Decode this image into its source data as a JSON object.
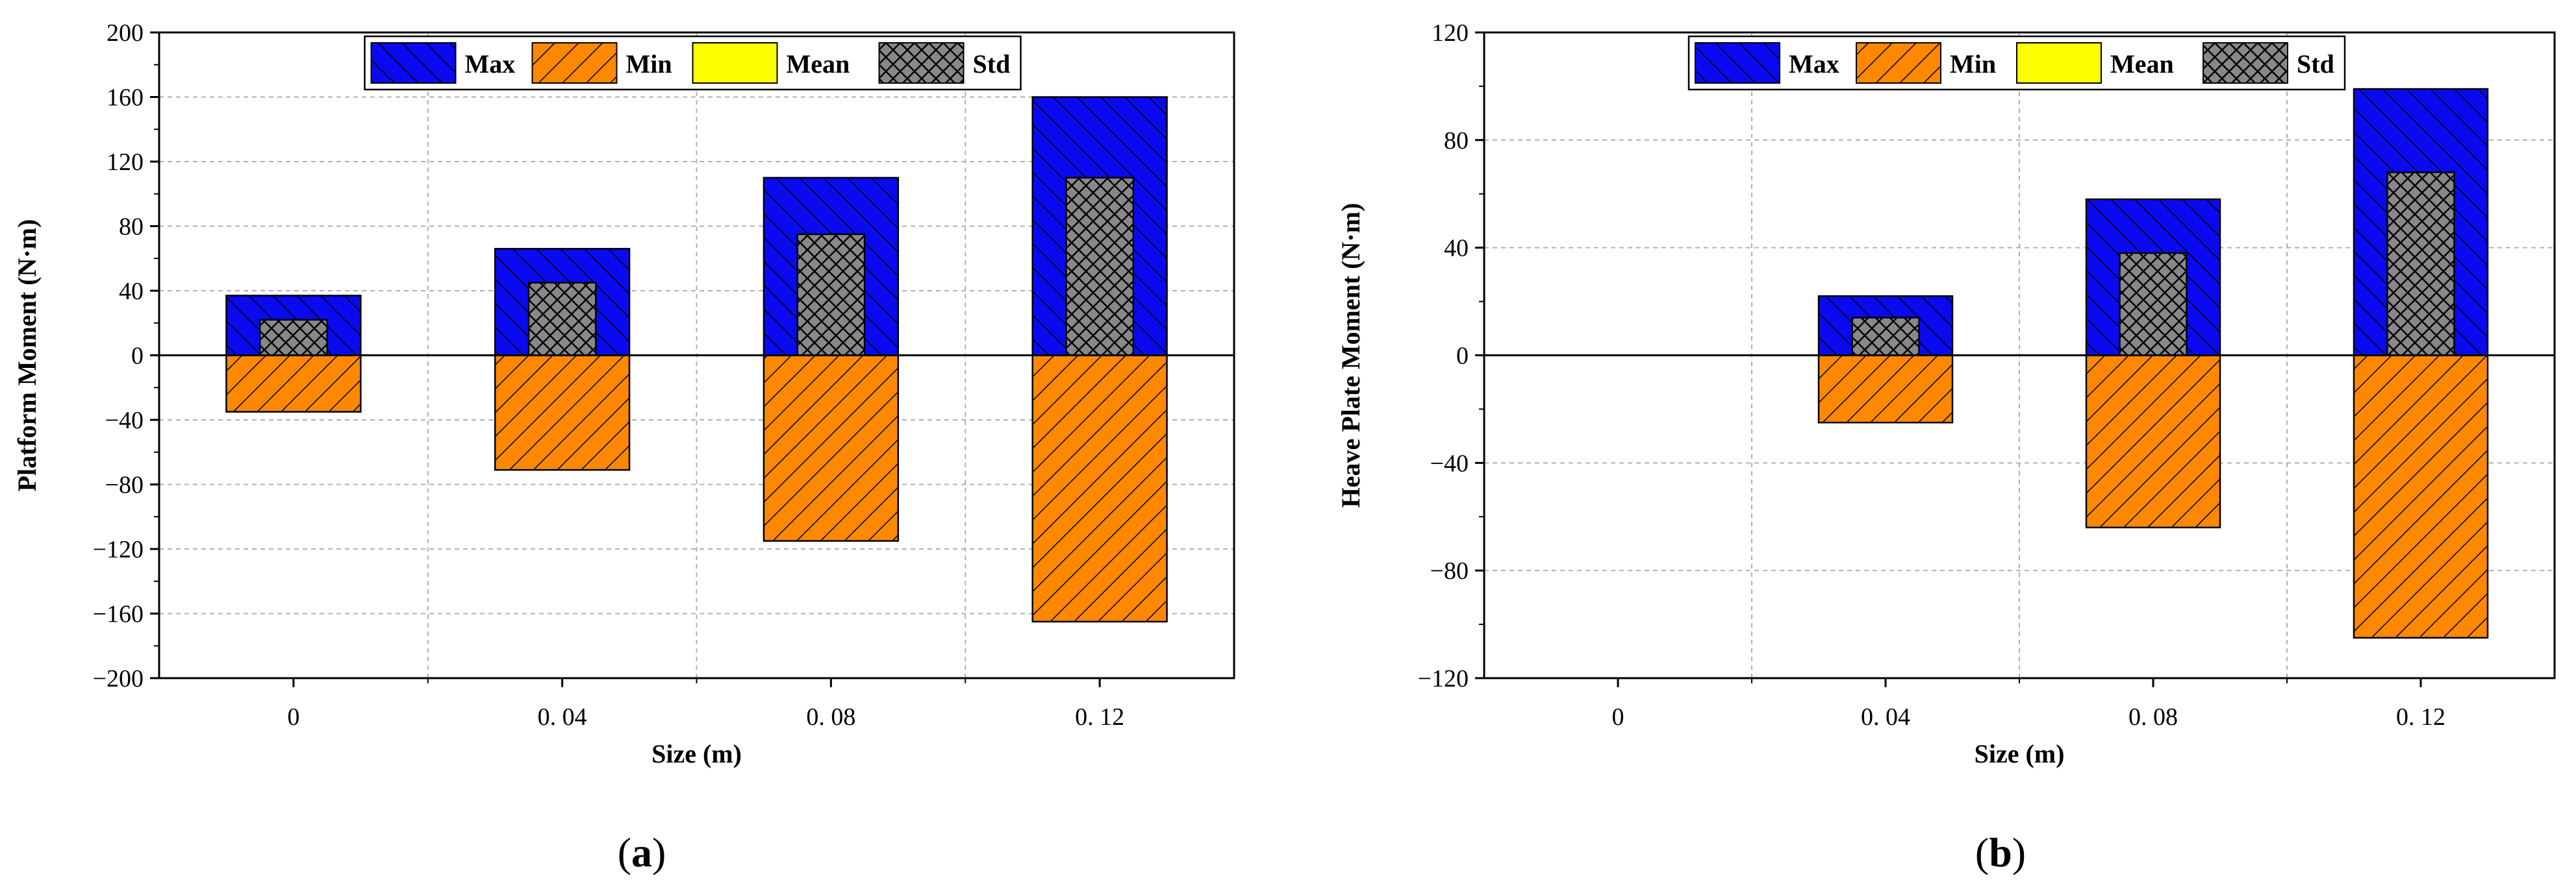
{
  "chart_data": [
    {
      "type": "bar",
      "caption": "a",
      "categories": [
        "0",
        "0.04",
        "0.08",
        "0.12"
      ],
      "xlabel": "Size (m)",
      "ylabel": "Platform Moment (N·m)",
      "ylim": [
        -200,
        200
      ],
      "yticks": [
        -200,
        -160,
        -120,
        -80,
        -40,
        0,
        40,
        80,
        120,
        160,
        200
      ],
      "grid": true,
      "legend_position": "top-center",
      "series": [
        {
          "name": "Max",
          "values": [
            37,
            66,
            110,
            160
          ]
        },
        {
          "name": "Min",
          "values": [
            -35,
            -71,
            -115,
            -165
          ]
        },
        {
          "name": "Mean",
          "values": [
            0,
            0,
            0,
            0
          ]
        },
        {
          "name": "Std",
          "values": [
            22,
            45,
            75,
            110
          ]
        }
      ]
    },
    {
      "type": "bar",
      "caption": "b",
      "categories": [
        "0",
        "0.04",
        "0.08",
        "0.12"
      ],
      "xlabel": "Size (m)",
      "ylabel": "Heave Plate Moment (N·m)",
      "ylim": [
        -120,
        120
      ],
      "yticks": [
        -120,
        -80,
        -40,
        0,
        40,
        80,
        120
      ],
      "grid": true,
      "legend_position": "top-center",
      "series": [
        {
          "name": "Max",
          "values": [
            0,
            22,
            58,
            99
          ]
        },
        {
          "name": "Min",
          "values": [
            0,
            -25,
            -64,
            -105
          ]
        },
        {
          "name": "Mean",
          "values": [
            0,
            0,
            0,
            0
          ]
        },
        {
          "name": "Std",
          "values": [
            0,
            14,
            38,
            68
          ]
        }
      ]
    }
  ],
  "colors": {
    "Max": "#0a0af0",
    "Min": "#ff8800",
    "Mean": "#ffff00",
    "Std": "#888888"
  },
  "tick_labels_x": [
    "0",
    "0. 04",
    "0. 08",
    "0. 12"
  ]
}
